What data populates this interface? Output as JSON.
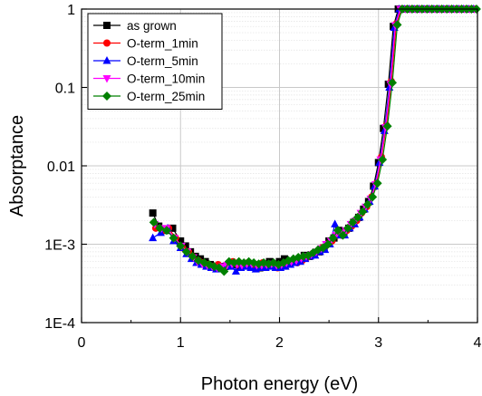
{
  "chart_data": {
    "type": "line",
    "xlabel": "Photon energy (eV)",
    "ylabel": "Absorptance",
    "xlim": [
      0,
      4
    ],
    "ylim": [
      0.0001,
      1
    ],
    "yscale": "log",
    "x_ticks": [
      "0",
      "1",
      "2",
      "3",
      "4"
    ],
    "y_ticks": [
      "1E-4",
      "1E-3",
      "0.01",
      "0.1",
      "1"
    ],
    "grid": true,
    "legend_position": "top-left",
    "series": [
      {
        "name": "as grown",
        "color": "#000000",
        "marker": "square",
        "x": [
          0.72,
          0.78,
          0.85,
          0.92,
          1.0,
          1.05,
          1.1,
          1.15,
          1.2,
          1.25,
          1.3,
          1.35,
          1.4,
          1.45,
          1.5,
          1.55,
          1.6,
          1.65,
          1.7,
          1.75,
          1.8,
          1.85,
          1.9,
          1.95,
          2.0,
          2.05,
          2.1,
          2.15,
          2.2,
          2.25,
          2.3,
          2.35,
          2.4,
          2.45,
          2.5,
          2.55,
          2.6,
          2.65,
          2.7,
          2.75,
          2.8,
          2.85,
          2.9,
          2.95,
          3.0,
          3.05,
          3.1,
          3.15,
          3.2,
          3.25,
          3.3,
          3.35,
          3.4,
          3.45,
          3.5,
          3.55,
          3.6,
          3.65,
          3.7,
          3.75,
          3.8,
          3.85,
          3.9,
          3.95
        ],
        "y": [
          0.0025,
          0.0017,
          0.0015,
          0.0016,
          0.0011,
          0.00095,
          0.0008,
          0.0007,
          0.00065,
          0.0006,
          0.00055,
          0.00052,
          0.0005,
          0.00052,
          0.00055,
          0.00055,
          0.00052,
          0.00055,
          0.00055,
          0.00052,
          0.0005,
          0.00052,
          0.0006,
          0.00055,
          0.0006,
          0.00065,
          0.0006,
          0.00062,
          0.00065,
          0.00072,
          0.0007,
          0.00075,
          0.0008,
          0.0009,
          0.0011,
          0.0012,
          0.0015,
          0.0014,
          0.0016,
          0.0019,
          0.0022,
          0.0028,
          0.0035,
          0.0055,
          0.011,
          0.03,
          0.11,
          0.6,
          1.0,
          1.0,
          1.0,
          1.0,
          1.0,
          1.0,
          1.0,
          1.0,
          1.0,
          1.0,
          1.0,
          1.0,
          1.0,
          1.0,
          1.0,
          1.0
        ]
      },
      {
        "name": "O-term_1min",
        "color": "#ff0000",
        "marker": "circle",
        "x": [
          0.75,
          0.82,
          0.88,
          0.95,
          1.02,
          1.08,
          1.12,
          1.18,
          1.23,
          1.28,
          1.33,
          1.38,
          1.43,
          1.48,
          1.53,
          1.58,
          1.63,
          1.68,
          1.73,
          1.78,
          1.83,
          1.88,
          1.93,
          1.98,
          2.03,
          2.08,
          2.13,
          2.18,
          2.23,
          2.28,
          2.33,
          2.38,
          2.43,
          2.48,
          2.53,
          2.58,
          2.63,
          2.68,
          2.73,
          2.78,
          2.83,
          2.88,
          2.93,
          2.98,
          3.03,
          3.08,
          3.13,
          3.18,
          3.23,
          3.28,
          3.33,
          3.38,
          3.43,
          3.48,
          3.53,
          3.58,
          3.63,
          3.68,
          3.73,
          3.78,
          3.83,
          3.88,
          3.93,
          3.98
        ],
        "y": [
          0.0016,
          0.0015,
          0.0016,
          0.0012,
          0.0009,
          0.0008,
          0.0007,
          0.00062,
          0.00058,
          0.00055,
          0.00052,
          0.00055,
          0.0005,
          0.00055,
          0.0006,
          0.00055,
          0.00055,
          0.00058,
          0.00055,
          0.00055,
          0.00058,
          0.00052,
          0.00055,
          0.0005,
          0.00052,
          0.00055,
          0.0006,
          0.00058,
          0.00062,
          0.00068,
          0.00075,
          0.0008,
          0.0009,
          0.001,
          0.0011,
          0.0013,
          0.0013,
          0.0015,
          0.0017,
          0.002,
          0.0025,
          0.003,
          0.004,
          0.006,
          0.013,
          0.033,
          0.12,
          0.65,
          1.0,
          1.0,
          1.0,
          1.0,
          1.0,
          1.0,
          1.0,
          1.0,
          1.0,
          1.0,
          1.0,
          1.0,
          1.0,
          1.0,
          1.0,
          1.0
        ]
      },
      {
        "name": "O-term_5min",
        "color": "#0000ff",
        "marker": "triangle-up",
        "x": [
          0.72,
          0.8,
          0.87,
          0.93,
          1.0,
          1.06,
          1.11,
          1.16,
          1.21,
          1.26,
          1.31,
          1.36,
          1.41,
          1.46,
          1.51,
          1.56,
          1.61,
          1.66,
          1.71,
          1.76,
          1.81,
          1.86,
          1.91,
          1.96,
          2.01,
          2.06,
          2.11,
          2.16,
          2.21,
          2.26,
          2.31,
          2.36,
          2.41,
          2.46,
          2.51,
          2.56,
          2.61,
          2.66,
          2.71,
          2.76,
          2.81,
          2.86,
          2.91,
          2.96,
          3.01,
          3.06,
          3.11,
          3.16,
          3.21,
          3.26,
          3.31,
          3.36,
          3.41,
          3.46,
          3.51,
          3.56,
          3.61,
          3.66,
          3.71,
          3.76,
          3.81,
          3.86,
          3.91,
          3.96
        ],
        "y": [
          0.0012,
          0.0014,
          0.0016,
          0.0011,
          0.0009,
          0.00075,
          0.00065,
          0.00058,
          0.00055,
          0.00052,
          0.0005,
          0.00048,
          0.0005,
          0.00055,
          0.00052,
          0.00045,
          0.0005,
          0.00052,
          0.0005,
          0.00048,
          0.0005,
          0.0005,
          0.00052,
          0.0005,
          0.0005,
          0.00052,
          0.00055,
          0.00058,
          0.0006,
          0.00065,
          0.0007,
          0.00072,
          0.0008,
          0.00085,
          0.001,
          0.0018,
          0.0013,
          0.0013,
          0.0016,
          0.0018,
          0.0022,
          0.0028,
          0.0035,
          0.0055,
          0.011,
          0.028,
          0.1,
          0.58,
          1.0,
          1.0,
          1.0,
          1.0,
          1.0,
          1.0,
          1.0,
          1.0,
          1.0,
          1.0,
          1.0,
          1.0,
          1.0,
          1.0,
          1.0,
          1.0
        ]
      },
      {
        "name": "O-term_10min",
        "color": "#ff00ff",
        "marker": "triangle-down",
        "x": [
          0.74,
          0.81,
          0.86,
          0.94,
          1.01,
          1.07,
          1.13,
          1.17,
          1.22,
          1.27,
          1.32,
          1.37,
          1.42,
          1.47,
          1.52,
          1.57,
          1.62,
          1.67,
          1.72,
          1.77,
          1.82,
          1.87,
          1.92,
          1.97,
          2.02,
          2.07,
          2.12,
          2.17,
          2.22,
          2.27,
          2.32,
          2.37,
          2.42,
          2.47,
          2.52,
          2.57,
          2.62,
          2.67,
          2.72,
          2.77,
          2.82,
          2.87,
          2.92,
          2.97,
          3.02,
          3.07,
          3.12,
          3.17,
          3.22,
          3.27,
          3.32,
          3.37,
          3.42,
          3.47,
          3.52,
          3.57,
          3.62,
          3.67,
          3.72,
          3.77,
          3.82,
          3.87,
          3.92,
          3.97
        ],
        "y": [
          0.0018,
          0.0016,
          0.0016,
          0.0012,
          0.00095,
          0.0008,
          0.00068,
          0.0006,
          0.00056,
          0.00054,
          0.00052,
          0.0005,
          0.00052,
          0.00054,
          0.00056,
          0.00055,
          0.00054,
          0.00056,
          0.00056,
          0.00054,
          0.00054,
          0.00055,
          0.00056,
          0.00054,
          0.00055,
          0.00058,
          0.0006,
          0.00062,
          0.00066,
          0.0007,
          0.00074,
          0.0008,
          0.00088,
          0.001,
          0.0011,
          0.0013,
          0.0014,
          0.0015,
          0.0018,
          0.002,
          0.0025,
          0.003,
          0.0038,
          0.0058,
          0.012,
          0.031,
          0.11,
          0.62,
          1.0,
          1.0,
          1.0,
          1.0,
          1.0,
          1.0,
          1.0,
          1.0,
          1.0,
          1.0,
          1.0,
          1.0,
          1.0,
          1.0,
          1.0,
          1.0
        ]
      },
      {
        "name": "O-term_25min",
        "color": "#008000",
        "marker": "diamond",
        "x": [
          0.73,
          0.79,
          0.86,
          0.93,
          1.0,
          1.06,
          1.12,
          1.18,
          1.24,
          1.29,
          1.34,
          1.39,
          1.44,
          1.49,
          1.54,
          1.59,
          1.64,
          1.69,
          1.74,
          1.79,
          1.84,
          1.89,
          1.94,
          1.99,
          2.04,
          2.09,
          2.14,
          2.19,
          2.24,
          2.29,
          2.34,
          2.39,
          2.44,
          2.49,
          2.54,
          2.59,
          2.64,
          2.69,
          2.74,
          2.79,
          2.84,
          2.89,
          2.94,
          2.99,
          3.04,
          3.09,
          3.14,
          3.19,
          3.24,
          3.29,
          3.34,
          3.39,
          3.44,
          3.49,
          3.54,
          3.59,
          3.64,
          3.69,
          3.74,
          3.79,
          3.84,
          3.89,
          3.94,
          3.99
        ],
        "y": [
          0.0019,
          0.0016,
          0.0015,
          0.0012,
          0.00095,
          0.0008,
          0.0007,
          0.00062,
          0.00058,
          0.00055,
          0.00052,
          0.0005,
          0.00045,
          0.0006,
          0.00058,
          0.0006,
          0.00058,
          0.0006,
          0.00058,
          0.00056,
          0.00058,
          0.00056,
          0.00058,
          0.00055,
          0.00058,
          0.00062,
          0.00065,
          0.00068,
          0.0007,
          0.00072,
          0.00078,
          0.00085,
          0.0009,
          0.001,
          0.0012,
          0.0015,
          0.0013,
          0.0016,
          0.0019,
          0.0022,
          0.0026,
          0.0032,
          0.004,
          0.006,
          0.012,
          0.032,
          0.115,
          0.63,
          1.0,
          1.0,
          1.0,
          1.0,
          1.0,
          1.0,
          1.0,
          1.0,
          1.0,
          1.0,
          1.0,
          1.0,
          1.0,
          1.0,
          1.0,
          1.0
        ]
      }
    ]
  }
}
